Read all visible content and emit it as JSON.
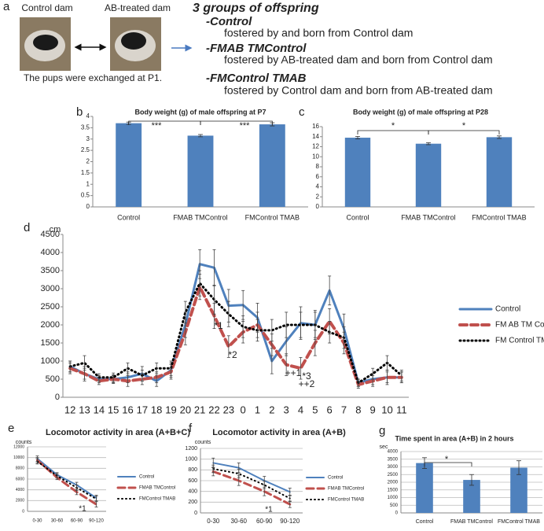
{
  "panel_a": {
    "label": "a",
    "photo_labels": [
      "Control dam",
      "AB-treated dam"
    ],
    "caption": "The pups were exchanged at P1.",
    "heading": "3 groups of offspring",
    "groups": [
      {
        "name": "-Control",
        "description": "fostered by and born from Control dam"
      },
      {
        "name": "-FMAB TMControl",
        "description": "fostered by AB-treated dam and born from Control dam"
      },
      {
        "name": "-FMControl TMAB",
        "description": "fostered by Control dam and born from AB-treated dam"
      }
    ]
  },
  "chart_data": [
    {
      "panel": "b",
      "type": "bar",
      "title": "Body weight (g) of male offspring at P7",
      "categories": [
        "Control",
        "FMAB TMControl",
        "FMControl TMAB"
      ],
      "values": [
        3.7,
        3.15,
        3.65
      ],
      "errors": [
        0.05,
        0.05,
        0.07
      ],
      "color": "#4f81bd",
      "ylim": [
        0,
        4
      ],
      "yticks": [
        0,
        0.5,
        1,
        1.5,
        2,
        2.5,
        3,
        3.5,
        4
      ],
      "grid": false,
      "annotations": [
        {
          "text": "***"
        },
        {
          "text": "***"
        }
      ]
    },
    {
      "panel": "c",
      "type": "bar",
      "title": "Body weight (g) of male offspring at P28",
      "categories": [
        "Control",
        "FMAB TMControl",
        "FMControl TMAB"
      ],
      "values": [
        13.8,
        12.6,
        13.9
      ],
      "errors": [
        0.25,
        0.2,
        0.25
      ],
      "color": "#4f81bd",
      "ylim": [
        0,
        16
      ],
      "yticks": [
        0,
        2,
        4,
        6,
        8,
        10,
        12,
        14,
        16
      ],
      "grid": false,
      "annotations": [
        {
          "text": "*"
        },
        {
          "text": "*"
        }
      ]
    },
    {
      "panel": "d",
      "type": "line",
      "y_label": "cm",
      "categories": [
        "12",
        "13",
        "14",
        "15",
        "16",
        "17",
        "18",
        "19",
        "20",
        "21",
        "22",
        "23",
        "0",
        "1",
        "2",
        "3",
        "4",
        "5",
        "6",
        "7",
        "8",
        "9",
        "10",
        "11"
      ],
      "ylim": [
        0,
        4500
      ],
      "yticks": [
        0,
        500,
        1000,
        1500,
        2000,
        2500,
        3000,
        3500,
        4000,
        4500
      ],
      "grid": false,
      "series": [
        {
          "name": "Control",
          "color": "#4f81bd",
          "style": "solid",
          "values": [
            850,
            650,
            500,
            500,
            550,
            650,
            450,
            750,
            2000,
            3680,
            3580,
            2530,
            2550,
            2200,
            1000,
            1550,
            2050,
            2000,
            2950,
            1900,
            400,
            500,
            550,
            550
          ],
          "errors": [
            150,
            200,
            100,
            120,
            150,
            200,
            150,
            200,
            350,
            400,
            500,
            450,
            400,
            400,
            350,
            400,
            450,
            400,
            400,
            400,
            100,
            150,
            200,
            150
          ]
        },
        {
          "name": "FM AB TM Control",
          "color": "#c0504d",
          "style": "dashed",
          "values": [
            800,
            650,
            450,
            500,
            450,
            500,
            550,
            700,
            1800,
            3050,
            2250,
            1400,
            1800,
            2000,
            1450,
            900,
            800,
            1500,
            2100,
            1500,
            350,
            450,
            550,
            550
          ],
          "errors": [
            150,
            150,
            100,
            100,
            150,
            150,
            150,
            200,
            350,
            350,
            350,
            300,
            300,
            350,
            300,
            300,
            300,
            350,
            350,
            300,
            100,
            150,
            150,
            150
          ]
        },
        {
          "name": "FM Control TM AB",
          "color": "#000000",
          "style": "dotted",
          "values": [
            850,
            950,
            550,
            550,
            800,
            600,
            800,
            800,
            2350,
            3150,
            2700,
            2300,
            1950,
            1850,
            1850,
            2000,
            2000,
            2000,
            1800,
            1650,
            400,
            650,
            950,
            600
          ],
          "errors": [
            150,
            200,
            100,
            120,
            150,
            150,
            150,
            200,
            300,
            350,
            400,
            350,
            300,
            300,
            300,
            350,
            350,
            350,
            300,
            300,
            100,
            150,
            200,
            150
          ]
        }
      ],
      "legend": "right",
      "annotations": [
        {
          "text": "*1",
          "color": "#333333"
        },
        {
          "text": "*2",
          "color": "#333333"
        },
        {
          "text": "++1",
          "color": "#e0443c"
        },
        {
          "text": "*3",
          "color": "#333333"
        },
        {
          "text": "++2",
          "color": "#e0443c"
        }
      ]
    },
    {
      "panel": "e",
      "type": "line",
      "title": "Locomotor activity in area (A+B+C)",
      "y_label": "counts",
      "categories": [
        "0-30",
        "30-60",
        "60-90",
        "90-120"
      ],
      "ylim": [
        0,
        12000
      ],
      "yticks": [
        0,
        2000,
        4000,
        6000,
        8000,
        10000,
        12000
      ],
      "grid": true,
      "series": [
        {
          "name": "Control",
          "color": "#4f81bd",
          "style": "solid",
          "values": [
            9800,
            6800,
            4900,
            2500
          ],
          "errors": [
            500,
            400,
            500,
            500
          ]
        },
        {
          "name": "FMAB TMControl",
          "color": "#c0504d",
          "style": "dashed",
          "values": [
            9500,
            6300,
            3600,
            1300
          ],
          "errors": [
            500,
            400,
            500,
            500
          ]
        },
        {
          "name": "FMControl TMAB",
          "color": "#000000",
          "style": "dotted",
          "values": [
            9300,
            6600,
            4400,
            2300
          ],
          "errors": [
            500,
            400,
            500,
            500
          ]
        }
      ],
      "legend": "right",
      "annotations": [
        {
          "text": "*1",
          "color": "#333333"
        }
      ]
    },
    {
      "panel": "f",
      "type": "line",
      "title": "Locomotor activity in area (A+B)",
      "y_label": "counts",
      "categories": [
        "0-30",
        "30-60",
        "60-90",
        "90-120"
      ],
      "ylim": [
        0,
        1200
      ],
      "yticks": [
        0,
        200,
        400,
        600,
        800,
        1000,
        1200
      ],
      "grid": true,
      "series": [
        {
          "name": "Control",
          "color": "#4f81bd",
          "style": "solid",
          "values": [
            930,
            840,
            600,
            390
          ],
          "errors": [
            90,
            90,
            80,
            70
          ]
        },
        {
          "name": "FMAB TMControl",
          "color": "#c0504d",
          "style": "dashed",
          "values": [
            770,
            600,
            400,
            160
          ],
          "errors": [
            80,
            90,
            80,
            60
          ]
        },
        {
          "name": "FMControl TMAB",
          "color": "#000000",
          "style": "dotted",
          "values": [
            820,
            730,
            520,
            270
          ],
          "errors": [
            70,
            80,
            70,
            60
          ]
        }
      ],
      "legend": "right",
      "annotations": [
        {
          "text": "*1",
          "color": "#333333"
        }
      ]
    },
    {
      "panel": "g",
      "type": "bar",
      "title": "Time spent in area (A+B) in 2 hours",
      "y_label": "sec",
      "categories": [
        "Control",
        "FMAB TMControl",
        "FMControl TMAB"
      ],
      "values": [
        3250,
        2150,
        2950
      ],
      "errors": [
        350,
        350,
        450
      ],
      "color": "#4f81bd",
      "ylim": [
        0,
        4000
      ],
      "yticks": [
        0,
        500,
        1000,
        1500,
        2000,
        2500,
        3000,
        3500,
        4000
      ],
      "grid": true,
      "annotations": [
        {
          "text": "*"
        }
      ]
    }
  ]
}
